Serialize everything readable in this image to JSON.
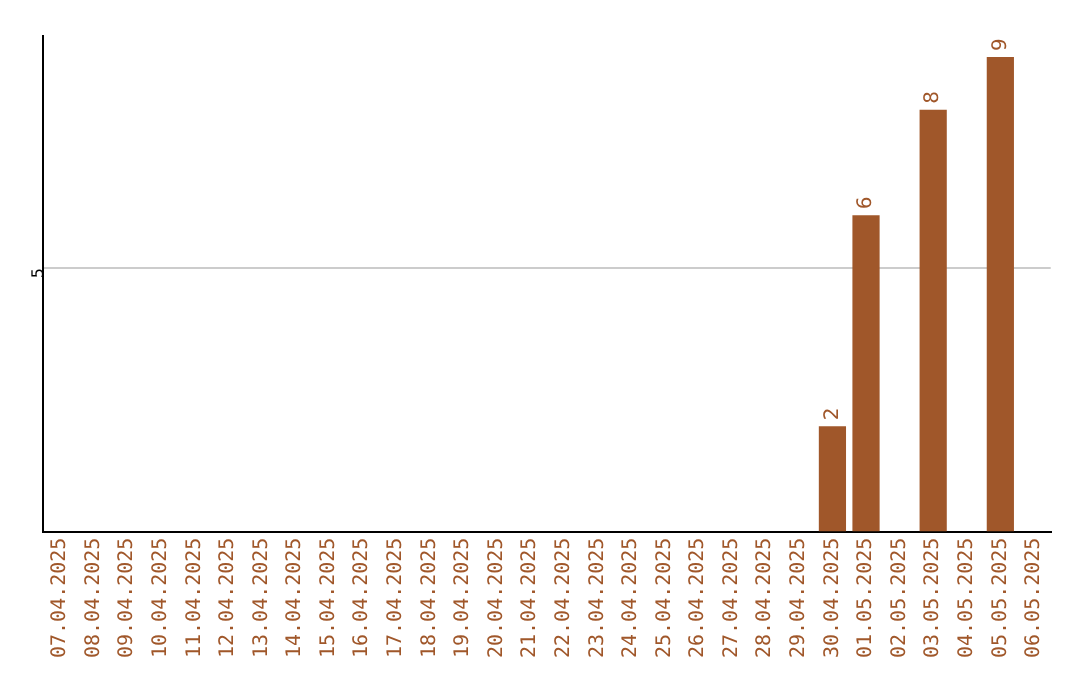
{
  "chart_data": {
    "type": "bar",
    "categories": [
      "07.04.2025",
      "08.04.2025",
      "09.04.2025",
      "10.04.2025",
      "11.04.2025",
      "12.04.2025",
      "13.04.2025",
      "14.04.2025",
      "15.04.2025",
      "16.04.2025",
      "17.04.2025",
      "18.04.2025",
      "19.04.2025",
      "20.04.2025",
      "21.04.2025",
      "22.04.2025",
      "23.04.2025",
      "24.04.2025",
      "25.04.2025",
      "26.04.2025",
      "27.04.2025",
      "28.04.2025",
      "29.04.2025",
      "30.04.2025",
      "01.05.2025",
      "02.05.2025",
      "03.05.2025",
      "04.05.2025",
      "05.05.2025",
      "06.05.2025"
    ],
    "values": [
      null,
      null,
      null,
      null,
      null,
      null,
      null,
      null,
      null,
      null,
      null,
      null,
      null,
      null,
      null,
      null,
      null,
      null,
      null,
      null,
      null,
      null,
      null,
      2,
      6,
      null,
      8,
      null,
      9,
      null
    ],
    "color": "#a0572a",
    "ylim": [
      0,
      9.4
    ],
    "yticks": [
      5
    ],
    "grid": "y",
    "data_labels": true,
    "legend": false
  }
}
